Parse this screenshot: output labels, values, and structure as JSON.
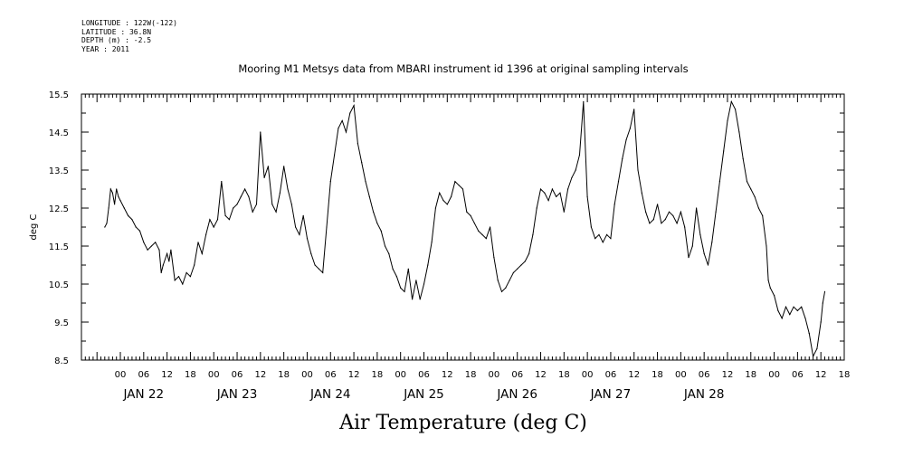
{
  "header_lines": {
    "longitude": "LONGITUDE : 122W(-122)",
    "latitude": "LATITUDE : 36.8N",
    "depth": "DEPTH (m) : -2.5",
    "year": "YEAR : 2011"
  },
  "chart_data": {
    "type": "line",
    "title": "Mooring M1 Metsys data from MBARI instrument id 1396 at original sampling intervals",
    "xlabel": "Air Temperature (deg C)",
    "ylabel": "deg C",
    "ylim": [
      8.5,
      15.5
    ],
    "xlim_hours": [
      -10,
      181
    ],
    "grid": false,
    "y_ticks": [
      "8.5",
      "9.5",
      "10.5",
      "11.5",
      "12.5",
      "13.5",
      "14.5",
      "15.5"
    ],
    "y_tick_values": [
      8.5,
      9.5,
      10.5,
      11.5,
      12.5,
      13.5,
      14.5,
      15.5
    ],
    "x_hour_ticks": [
      {
        "h": 0,
        "label": "00"
      },
      {
        "h": 6,
        "label": "06"
      },
      {
        "h": 12,
        "label": "12"
      },
      {
        "h": 18,
        "label": "18"
      },
      {
        "h": 24,
        "label": "00"
      },
      {
        "h": 30,
        "label": "06"
      },
      {
        "h": 36,
        "label": "12"
      },
      {
        "h": 42,
        "label": "18"
      },
      {
        "h": 48,
        "label": "00"
      },
      {
        "h": 54,
        "label": "06"
      },
      {
        "h": 60,
        "label": "12"
      },
      {
        "h": 66,
        "label": "18"
      },
      {
        "h": 72,
        "label": "00"
      },
      {
        "h": 78,
        "label": "06"
      },
      {
        "h": 84,
        "label": "12"
      },
      {
        "h": 90,
        "label": "18"
      },
      {
        "h": 96,
        "label": "00"
      },
      {
        "h": 102,
        "label": "06"
      },
      {
        "h": 108,
        "label": "12"
      },
      {
        "h": 114,
        "label": "18"
      },
      {
        "h": 120,
        "label": "00"
      },
      {
        "h": 126,
        "label": "06"
      },
      {
        "h": 132,
        "label": "12"
      },
      {
        "h": 138,
        "label": "18"
      },
      {
        "h": 144,
        "label": "00"
      },
      {
        "h": 150,
        "label": "06"
      },
      {
        "h": 156,
        "label": "12"
      },
      {
        "h": 162,
        "label": "18"
      },
      {
        "h": 168,
        "label": "00"
      },
      {
        "h": 174,
        "label": "06"
      },
      {
        "h": 180,
        "label": "12"
      },
      {
        "h": 186,
        "label": "18"
      }
    ],
    "day_labels": [
      {
        "h": 6,
        "label": "JAN 22"
      },
      {
        "h": 30,
        "label": "JAN 23"
      },
      {
        "h": 54,
        "label": "JAN 24"
      },
      {
        "h": 78,
        "label": "JAN 25"
      },
      {
        "h": 102,
        "label": "JAN 26"
      },
      {
        "h": 126,
        "label": "JAN 27"
      },
      {
        "h": 150,
        "label": "JAN 28"
      }
    ],
    "series": [
      {
        "values": [
          [
            -4.0,
            12.0
          ],
          [
            -3.5,
            12.1
          ],
          [
            -3.0,
            12.5
          ],
          [
            -2.5,
            13.0
          ],
          [
            -2.0,
            12.9
          ],
          [
            -1.5,
            12.6
          ],
          [
            -1.0,
            13.0
          ],
          [
            -0.5,
            12.8
          ],
          [
            0.0,
            12.7
          ],
          [
            1.0,
            12.5
          ],
          [
            2.0,
            12.3
          ],
          [
            3.0,
            12.2
          ],
          [
            4.0,
            12.0
          ],
          [
            5.0,
            11.9
          ],
          [
            6.0,
            11.6
          ],
          [
            7.0,
            11.4
          ],
          [
            8.0,
            11.5
          ],
          [
            9.0,
            11.6
          ],
          [
            10.0,
            11.4
          ],
          [
            10.5,
            10.8
          ],
          [
            11.0,
            11.0
          ],
          [
            12.0,
            11.3
          ],
          [
            12.5,
            11.1
          ],
          [
            13.0,
            11.4
          ],
          [
            14.0,
            10.6
          ],
          [
            15.0,
            10.7
          ],
          [
            16.0,
            10.5
          ],
          [
            17.0,
            10.8
          ],
          [
            18.0,
            10.7
          ],
          [
            19.0,
            11.0
          ],
          [
            20.0,
            11.6
          ],
          [
            21.0,
            11.3
          ],
          [
            22.0,
            11.8
          ],
          [
            23.0,
            12.2
          ],
          [
            24.0,
            12.0
          ],
          [
            25.0,
            12.2
          ],
          [
            26.0,
            13.2
          ],
          [
            27.0,
            12.3
          ],
          [
            28.0,
            12.2
          ],
          [
            29.0,
            12.5
          ],
          [
            30.0,
            12.6
          ],
          [
            31.0,
            12.8
          ],
          [
            32.0,
            13.0
          ],
          [
            33.0,
            12.8
          ],
          [
            34.0,
            12.4
          ],
          [
            35.0,
            12.6
          ],
          [
            36.0,
            14.5
          ],
          [
            37.0,
            13.3
          ],
          [
            38.0,
            13.6
          ],
          [
            39.0,
            12.6
          ],
          [
            40.0,
            12.4
          ],
          [
            41.0,
            12.9
          ],
          [
            42.0,
            13.6
          ],
          [
            43.0,
            13.0
          ],
          [
            44.0,
            12.6
          ],
          [
            45.0,
            12.0
          ],
          [
            46.0,
            11.8
          ],
          [
            47.0,
            12.3
          ],
          [
            48.0,
            11.7
          ],
          [
            49.0,
            11.3
          ],
          [
            50.0,
            11.0
          ],
          [
            51.0,
            10.9
          ],
          [
            52.0,
            10.8
          ],
          [
            53.0,
            12.0
          ],
          [
            54.0,
            13.2
          ],
          [
            55.0,
            13.9
          ],
          [
            56.0,
            14.6
          ],
          [
            57.0,
            14.8
          ],
          [
            58.0,
            14.5
          ],
          [
            59.0,
            15.0
          ],
          [
            60.0,
            15.2
          ],
          [
            61.0,
            14.2
          ],
          [
            62.0,
            13.7
          ],
          [
            63.0,
            13.2
          ],
          [
            64.0,
            12.8
          ],
          [
            65.0,
            12.4
          ],
          [
            66.0,
            12.1
          ],
          [
            67.0,
            11.9
          ],
          [
            68.0,
            11.5
          ],
          [
            69.0,
            11.3
          ],
          [
            70.0,
            10.9
          ],
          [
            71.0,
            10.7
          ],
          [
            72.0,
            10.4
          ],
          [
            73.0,
            10.3
          ],
          [
            74.0,
            10.9
          ],
          [
            75.0,
            10.1
          ],
          [
            76.0,
            10.6
          ],
          [
            77.0,
            10.1
          ],
          [
            78.0,
            10.5
          ],
          [
            79.0,
            11.0
          ],
          [
            80.0,
            11.6
          ],
          [
            81.0,
            12.5
          ],
          [
            82.0,
            12.9
          ],
          [
            83.0,
            12.7
          ],
          [
            84.0,
            12.6
          ],
          [
            85.0,
            12.8
          ],
          [
            86.0,
            13.2
          ],
          [
            87.0,
            13.1
          ],
          [
            88.0,
            13.0
          ],
          [
            89.0,
            12.4
          ],
          [
            90.0,
            12.3
          ],
          [
            91.0,
            12.1
          ],
          [
            92.0,
            11.9
          ],
          [
            93.0,
            11.8
          ],
          [
            94.0,
            11.7
          ],
          [
            95.0,
            12.0
          ],
          [
            96.0,
            11.2
          ],
          [
            97.0,
            10.6
          ],
          [
            98.0,
            10.3
          ],
          [
            99.0,
            10.4
          ],
          [
            100.0,
            10.6
          ],
          [
            101.0,
            10.8
          ],
          [
            102.0,
            10.9
          ],
          [
            103.0,
            11.0
          ],
          [
            104.0,
            11.1
          ],
          [
            105.0,
            11.3
          ],
          [
            106.0,
            11.8
          ],
          [
            107.0,
            12.5
          ],
          [
            108.0,
            13.0
          ],
          [
            109.0,
            12.9
          ],
          [
            110.0,
            12.7
          ],
          [
            111.0,
            13.0
          ],
          [
            112.0,
            12.8
          ],
          [
            113.0,
            12.9
          ],
          [
            114.0,
            12.4
          ],
          [
            115.0,
            13.0
          ],
          [
            116.0,
            13.3
          ],
          [
            117.0,
            13.5
          ],
          [
            118.0,
            13.9
          ],
          [
            119.0,
            15.3
          ],
          [
            120.0,
            12.8
          ],
          [
            121.0,
            12.0
          ],
          [
            122.0,
            11.7
          ],
          [
            123.0,
            11.8
          ],
          [
            124.0,
            11.6
          ],
          [
            125.0,
            11.8
          ],
          [
            126.0,
            11.7
          ],
          [
            127.0,
            12.6
          ],
          [
            128.0,
            13.2
          ],
          [
            129.0,
            13.8
          ],
          [
            130.0,
            14.3
          ],
          [
            131.0,
            14.6
          ],
          [
            132.0,
            15.1
          ],
          [
            133.0,
            13.5
          ],
          [
            134.0,
            12.9
          ],
          [
            135.0,
            12.4
          ],
          [
            136.0,
            12.1
          ],
          [
            137.0,
            12.2
          ],
          [
            138.0,
            12.6
          ],
          [
            139.0,
            12.1
          ],
          [
            140.0,
            12.2
          ],
          [
            141.0,
            12.4
          ],
          [
            142.0,
            12.3
          ],
          [
            143.0,
            12.1
          ],
          [
            144.0,
            12.4
          ],
          [
            145.0,
            12.0
          ],
          [
            146.0,
            11.2
          ],
          [
            147.0,
            11.5
          ],
          [
            148.0,
            12.5
          ],
          [
            149.0,
            11.8
          ],
          [
            150.0,
            11.3
          ],
          [
            151.0,
            11.0
          ],
          [
            152.0,
            11.6
          ],
          [
            153.0,
            12.4
          ],
          [
            154.0,
            13.2
          ],
          [
            155.0,
            14.0
          ],
          [
            156.0,
            14.8
          ],
          [
            157.0,
            15.3
          ],
          [
            158.0,
            15.1
          ],
          [
            159.0,
            14.5
          ],
          [
            160.0,
            13.8
          ],
          [
            161.0,
            13.2
          ],
          [
            162.0,
            13.0
          ],
          [
            163.0,
            12.8
          ],
          [
            164.0,
            12.5
          ],
          [
            165.0,
            12.3
          ],
          [
            166.0,
            11.5
          ],
          [
            166.5,
            10.6
          ],
          [
            167.0,
            10.4
          ],
          [
            168.0,
            10.2
          ],
          [
            169.0,
            9.8
          ],
          [
            170.0,
            9.6
          ],
          [
            171.0,
            9.9
          ],
          [
            172.0,
            9.7
          ],
          [
            173.0,
            9.9
          ],
          [
            174.0,
            9.8
          ],
          [
            175.0,
            9.9
          ],
          [
            176.0,
            9.6
          ],
          [
            177.0,
            9.2
          ],
          [
            178.0,
            8.6
          ],
          [
            179.0,
            8.8
          ],
          [
            180.0,
            9.5
          ],
          [
            180.5,
            10.0
          ],
          [
            181.0,
            10.3
          ]
        ]
      }
    ]
  }
}
